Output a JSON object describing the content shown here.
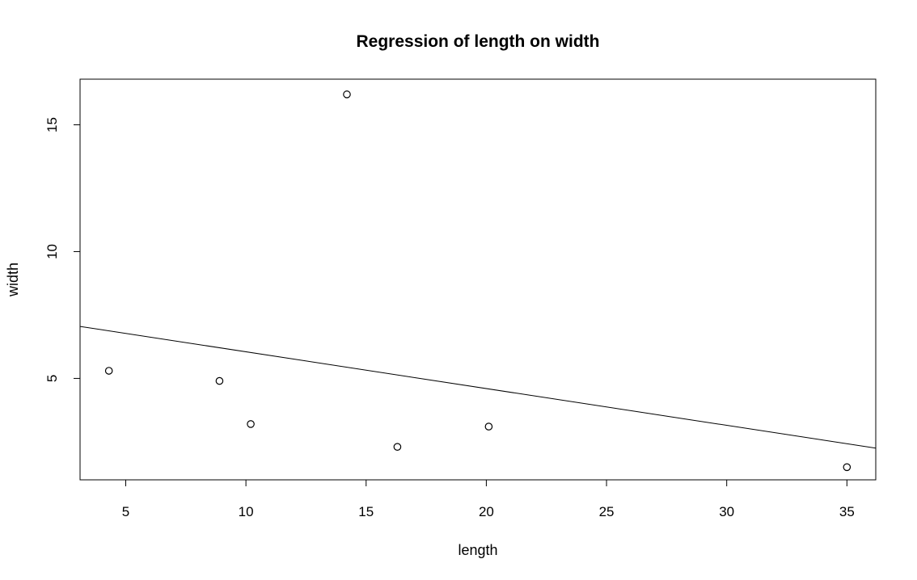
{
  "chart_data": {
    "type": "scatter",
    "title": "Regression of length on width",
    "xlabel": "length",
    "ylabel": "width",
    "xlim": [
      3.1,
      36.2
    ],
    "ylim": [
      1.0,
      16.8
    ],
    "x_ticks": [
      5,
      10,
      15,
      20,
      25,
      30,
      35
    ],
    "y_ticks": [
      5,
      10,
      15
    ],
    "grid": false,
    "legend": "none",
    "points": [
      {
        "x": 4.3,
        "y": 5.3
      },
      {
        "x": 8.9,
        "y": 4.9
      },
      {
        "x": 10.2,
        "y": 3.2
      },
      {
        "x": 14.2,
        "y": 16.2
      },
      {
        "x": 16.3,
        "y": 2.3
      },
      {
        "x": 20.1,
        "y": 3.1
      },
      {
        "x": 35.0,
        "y": 1.5
      }
    ],
    "regression_line": {
      "x": [
        3.1,
        36.2
      ],
      "y": [
        7.05,
        2.25
      ]
    }
  }
}
